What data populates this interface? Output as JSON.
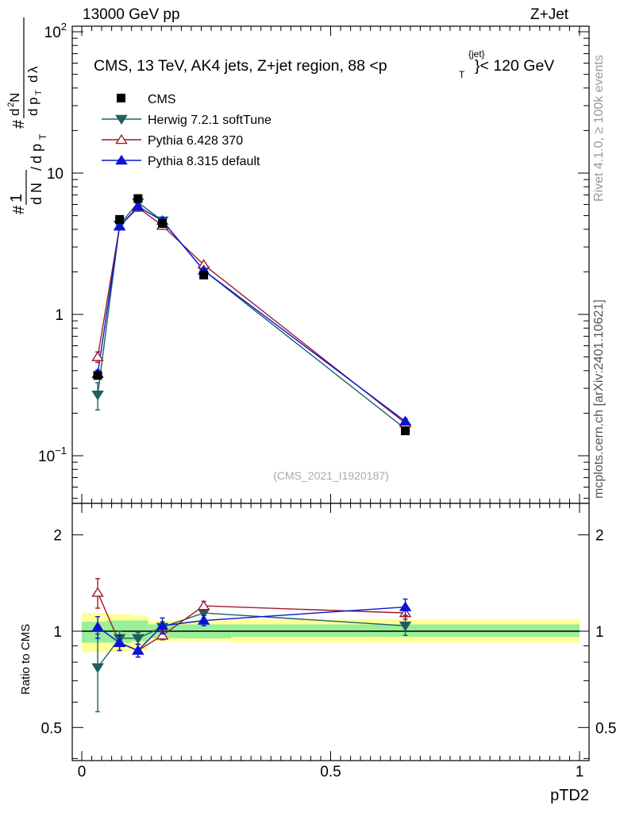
{
  "header": {
    "left": "13000 GeV pp",
    "right": "Z+Jet"
  },
  "side_labels": {
    "rivet": "Rivet 4.1.0, ≥ 100k events",
    "mcplots": "mcplots.cern.ch [arXiv:2401.10621]"
  },
  "chart_data": {
    "type": "line",
    "title": "CMS, 13 TeV, AK4 jets, Z+jet region, 88 <p_T^{jet}< 120 GeV",
    "watermark": "(CMS_2021_I1920187)",
    "xlabel": "pTD2",
    "ylabel": "1/N dN/dλ",
    "ratio_ylabel": "Ratio to CMS",
    "xlim": [
      -0.02,
      1.02
    ],
    "ylim_log": [
      0.05,
      110
    ],
    "ratio_ylim": [
      0.4,
      2.4
    ],
    "x_ticks": [
      "0",
      "0.5",
      "1"
    ],
    "y_ticks": [
      {
        "value": 0.1,
        "base": "10",
        "exp": "−1"
      },
      {
        "value": 1,
        "base": "1",
        "exp": ""
      },
      {
        "value": 10,
        "base": "10",
        "exp": ""
      },
      {
        "value": 100,
        "base": "10",
        "exp": "2"
      }
    ],
    "ratio_ticks": [
      "0.5",
      "1",
      "2"
    ],
    "bins": [
      [
        0,
        0.05
      ],
      [
        0.05,
        0.1
      ],
      [
        0.1,
        0.133
      ],
      [
        0.133,
        0.2
      ],
      [
        0.2,
        0.3
      ],
      [
        0.3,
        1.0
      ]
    ],
    "x": [
      0.032,
      0.076,
      0.113,
      0.162,
      0.245,
      0.65
    ],
    "data": {
      "name": "CMS",
      "values": [
        0.37,
        4.7,
        6.6,
        4.4,
        1.9,
        0.15
      ],
      "band_inner": [
        [
          0.92,
          1.07
        ],
        [
          0.92,
          1.08
        ],
        [
          0.93,
          1.08
        ],
        [
          0.95,
          1.05
        ],
        [
          0.95,
          1.05
        ],
        [
          0.96,
          1.05
        ]
      ],
      "band_outer": [
        [
          0.86,
          1.14
        ],
        [
          0.86,
          1.13
        ],
        [
          0.87,
          1.12
        ],
        [
          0.93,
          1.08
        ],
        [
          0.93,
          1.08
        ],
        [
          0.92,
          1.09
        ]
      ]
    },
    "series": [
      {
        "name": "Herwig 7.2.1 softTune",
        "color": "#1f5f5f",
        "marker": "triangle-down",
        "fill": true,
        "values": [
          0.27,
          4.3,
          6.2,
          4.6,
          2.05,
          0.155
        ],
        "ratio": [
          0.77,
          0.95,
          0.95,
          1.03,
          1.14,
          1.04
        ],
        "ratio_err": [
          0.21,
          0.05,
          0.04,
          0.04,
          0.04,
          0.07
        ]
      },
      {
        "name": "Pythia 6.428 370",
        "color": "#9b1b2a",
        "marker": "triangle-up",
        "fill": false,
        "values": [
          0.5,
          4.2,
          5.7,
          4.25,
          2.25,
          0.17
        ],
        "ratio": [
          1.32,
          0.92,
          0.87,
          0.97,
          1.2,
          1.14
        ],
        "ratio_err": [
          0.14,
          0.05,
          0.04,
          0.03,
          0.04,
          0.05
        ]
      },
      {
        "name": "Pythia 8.315 default",
        "color": "#0a14d6",
        "marker": "triangle-up",
        "fill": true,
        "values": [
          0.38,
          4.2,
          5.8,
          4.6,
          2.05,
          0.175
        ],
        "ratio": [
          1.03,
          0.92,
          0.87,
          1.04,
          1.08,
          1.19
        ],
        "ratio_err": [
          0.08,
          0.05,
          0.04,
          0.06,
          0.04,
          0.07
        ]
      }
    ]
  }
}
